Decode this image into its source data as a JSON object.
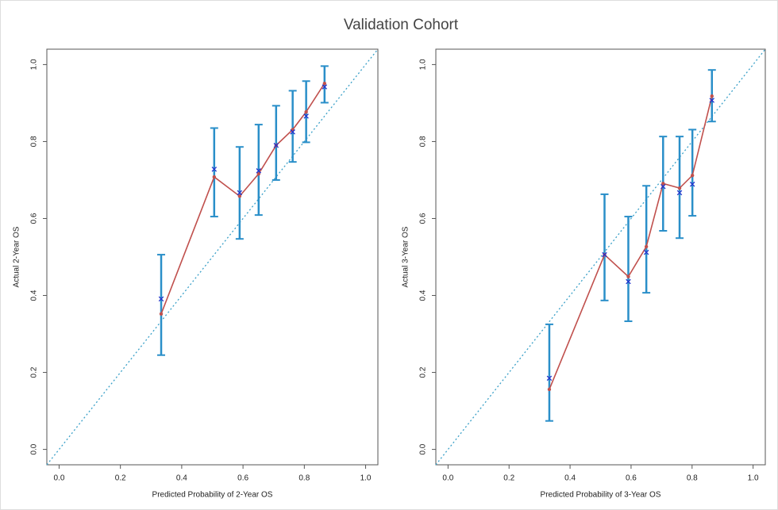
{
  "title": "Validation Cohort",
  "chart_data": [
    {
      "type": "calibration",
      "xlabel": "Predicted Probability of 2-Year OS",
      "ylabel": "Actual 2-Year OS",
      "xlim": [
        -0.04,
        1.04
      ],
      "ylim": [
        -0.04,
        1.04
      ],
      "xticks": [
        {
          "value": 0,
          "label": "0.0"
        },
        0.2,
        0.4,
        0.6,
        0.8,
        {
          "value": 1,
          "label": "1.0"
        }
      ],
      "yticks": [
        {
          "value": 0,
          "label": "0.0"
        },
        0.2,
        0.4,
        0.6,
        0.8,
        {
          "value": 1,
          "label": "1.0"
        }
      ],
      "diagonal_color": "#3aa0c8",
      "x": [
        0.333,
        0.506,
        0.589,
        0.651,
        0.708,
        0.762,
        0.806,
        0.866
      ],
      "series": [
        {
          "color": "#c0504d",
          "values": [
            0.352,
            0.708,
            0.658,
            0.716,
            0.79,
            0.831,
            0.877,
            0.951
          ]
        },
        {
          "color": "#2233cc",
          "error_color": "#2a8fc9",
          "values": [
            0.391,
            0.728,
            0.667,
            0.724,
            0.79,
            0.825,
            0.866,
            0.942
          ],
          "lower": [
            0.245,
            0.605,
            0.547,
            0.609,
            0.7,
            0.747,
            0.798,
            0.901
          ],
          "upper": [
            0.506,
            0.835,
            0.786,
            0.844,
            0.893,
            0.932,
            0.957,
            0.996
          ]
        }
      ]
    },
    {
      "type": "calibration",
      "xlabel": "Predicted Probability of 3-Year OS",
      "ylabel": "Actual 3-Year OS",
      "xlim": [
        -0.04,
        1.04
      ],
      "ylim": [
        -0.04,
        1.04
      ],
      "xticks": [
        {
          "value": 0,
          "label": "0.0"
        },
        0.2,
        0.4,
        0.6,
        0.8,
        {
          "value": 1,
          "label": "1.0"
        }
      ],
      "yticks": [
        {
          "value": 0,
          "label": "0.0"
        },
        0.2,
        0.4,
        0.6,
        0.8,
        {
          "value": 1,
          "label": "1.0"
        }
      ],
      "diagonal_color": "#3aa0c8",
      "x": [
        0.332,
        0.513,
        0.591,
        0.65,
        0.705,
        0.759,
        0.801,
        0.865
      ],
      "series": [
        {
          "color": "#c0504d",
          "values": [
            0.156,
            0.506,
            0.449,
            0.527,
            0.691,
            0.679,
            0.712,
            0.918
          ]
        },
        {
          "color": "#2233cc",
          "error_color": "#2a8fc9",
          "values": [
            0.185,
            0.506,
            0.436,
            0.512,
            0.683,
            0.667,
            0.689,
            0.907
          ],
          "lower": [
            0.074,
            0.387,
            0.333,
            0.407,
            0.568,
            0.549,
            0.607,
            0.852
          ],
          "upper": [
            0.325,
            0.663,
            0.605,
            0.685,
            0.813,
            0.813,
            0.831,
            0.986
          ]
        }
      ]
    }
  ]
}
